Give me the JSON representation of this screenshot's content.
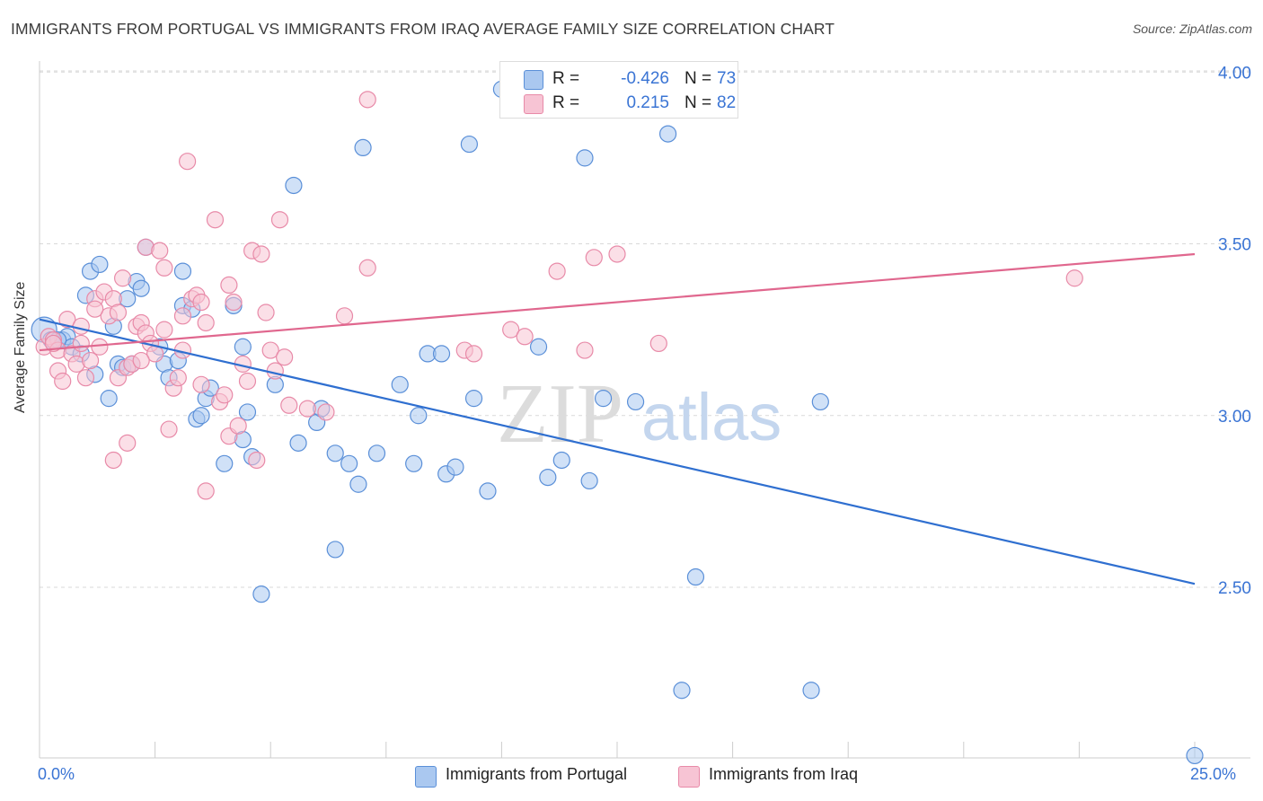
{
  "header": {
    "title": "IMMIGRANTS FROM PORTUGAL VS IMMIGRANTS FROM IRAQ AVERAGE FAMILY SIZE CORRELATION CHART",
    "source": "Source: ZipAtlas.com"
  },
  "watermark": {
    "zip": "ZIP",
    "atlas": "atlas"
  },
  "legend": {
    "r_label": "R =",
    "n_label": "N =",
    "portugal": {
      "r": "-0.426",
      "n": "73"
    },
    "iraq": {
      "r": "0.215",
      "n": "82"
    }
  },
  "colors": {
    "portugal_fill": "#aac8f0",
    "portugal_stroke": "#5a8fd8",
    "portugal_line": "#2f6fd0",
    "iraq_fill": "#f7c4d4",
    "iraq_stroke": "#e88aa8",
    "iraq_line": "#e0678e",
    "axis_text": "#3a74d4",
    "grid": "#d9d9d9"
  },
  "chart_data": {
    "type": "scatter",
    "title": "IMMIGRANTS FROM PORTUGAL VS IMMIGRANTS FROM IRAQ AVERAGE FAMILY SIZE CORRELATION CHART",
    "xlabel": "",
    "ylabel": "Average Family Size",
    "xlim": [
      0,
      25
    ],
    "ylim": [
      2.0,
      4.05
    ],
    "x_tick_labels": [
      "0.0%",
      "25.0%"
    ],
    "y_ticks": [
      2.5,
      3.0,
      3.5,
      4.0
    ],
    "y_tick_labels": [
      "2.50",
      "3.00",
      "3.50",
      "4.00"
    ],
    "grid": true,
    "series": [
      {
        "name": "Immigrants from Portugal",
        "trend": [
          [
            0,
            3.28
          ],
          [
            25,
            2.51
          ]
        ],
        "points": [
          [
            0.1,
            3.25
          ],
          [
            0.25,
            3.22
          ],
          [
            0.5,
            3.22
          ],
          [
            0.6,
            3.23
          ],
          [
            0.7,
            3.2
          ],
          [
            1.0,
            3.35
          ],
          [
            1.1,
            3.42
          ],
          [
            1.3,
            3.44
          ],
          [
            1.6,
            3.26
          ],
          [
            1.2,
            3.12
          ],
          [
            1.5,
            3.05
          ],
          [
            1.7,
            3.15
          ],
          [
            1.8,
            3.14
          ],
          [
            1.9,
            3.34
          ],
          [
            2.1,
            3.39
          ],
          [
            2.2,
            3.37
          ],
          [
            2.3,
            3.49
          ],
          [
            2.6,
            3.2
          ],
          [
            2.7,
            3.15
          ],
          [
            2.8,
            3.11
          ],
          [
            3.1,
            3.32
          ],
          [
            3.3,
            3.31
          ],
          [
            3.1,
            3.42
          ],
          [
            3.4,
            2.99
          ],
          [
            3.5,
            3.0
          ],
          [
            3.6,
            3.05
          ],
          [
            3.7,
            3.08
          ],
          [
            4.0,
            2.86
          ],
          [
            4.2,
            3.32
          ],
          [
            4.4,
            2.93
          ],
          [
            4.4,
            3.2
          ],
          [
            4.5,
            3.01
          ],
          [
            4.6,
            2.88
          ],
          [
            5.1,
            3.09
          ],
          [
            4.8,
            2.48
          ],
          [
            5.5,
            3.67
          ],
          [
            5.6,
            2.92
          ],
          [
            6.0,
            2.98
          ],
          [
            6.1,
            3.02
          ],
          [
            6.4,
            2.89
          ],
          [
            6.4,
            2.61
          ],
          [
            6.7,
            2.86
          ],
          [
            6.9,
            2.8
          ],
          [
            7.0,
            3.78
          ],
          [
            7.3,
            2.89
          ],
          [
            7.8,
            3.09
          ],
          [
            8.1,
            2.86
          ],
          [
            8.2,
            3.0
          ],
          [
            8.4,
            3.18
          ],
          [
            8.7,
            3.18
          ],
          [
            8.8,
            2.83
          ],
          [
            9.0,
            2.85
          ],
          [
            9.3,
            3.79
          ],
          [
            9.4,
            3.05
          ],
          [
            9.7,
            2.78
          ],
          [
            10.0,
            3.95
          ],
          [
            10.8,
            3.2
          ],
          [
            11.0,
            2.82
          ],
          [
            11.3,
            2.87
          ],
          [
            11.8,
            3.75
          ],
          [
            11.9,
            2.81
          ],
          [
            12.2,
            3.05
          ],
          [
            12.9,
            3.04
          ],
          [
            13.6,
            3.82
          ],
          [
            13.9,
            2.2
          ],
          [
            14.2,
            2.53
          ],
          [
            16.7,
            2.2
          ],
          [
            16.9,
            3.04
          ],
          [
            25.0,
            2.01
          ],
          [
            0.4,
            3.22
          ],
          [
            0.9,
            3.18
          ],
          [
            2.0,
            3.15
          ],
          [
            3.0,
            3.16
          ]
        ]
      },
      {
        "name": "Immigrants from Iraq",
        "trend": [
          [
            0,
            3.19
          ],
          [
            25,
            3.47
          ]
        ],
        "points": [
          [
            0.1,
            3.2
          ],
          [
            0.2,
            3.23
          ],
          [
            0.3,
            3.22
          ],
          [
            0.4,
            3.19
          ],
          [
            0.4,
            3.13
          ],
          [
            0.5,
            3.1
          ],
          [
            0.6,
            3.28
          ],
          [
            0.7,
            3.18
          ],
          [
            0.8,
            3.15
          ],
          [
            0.9,
            3.26
          ],
          [
            0.9,
            3.21
          ],
          [
            1.0,
            3.11
          ],
          [
            1.1,
            3.16
          ],
          [
            1.2,
            3.34
          ],
          [
            1.3,
            3.2
          ],
          [
            1.4,
            3.36
          ],
          [
            1.5,
            3.29
          ],
          [
            1.6,
            3.34
          ],
          [
            1.7,
            3.3
          ],
          [
            1.7,
            3.11
          ],
          [
            1.8,
            3.4
          ],
          [
            1.9,
            3.14
          ],
          [
            1.9,
            2.92
          ],
          [
            1.6,
            2.87
          ],
          [
            2.0,
            3.15
          ],
          [
            2.1,
            3.26
          ],
          [
            2.2,
            3.27
          ],
          [
            2.3,
            3.49
          ],
          [
            2.3,
            3.24
          ],
          [
            2.4,
            3.21
          ],
          [
            2.5,
            3.18
          ],
          [
            2.6,
            3.48
          ],
          [
            2.7,
            3.25
          ],
          [
            2.7,
            3.43
          ],
          [
            2.8,
            2.96
          ],
          [
            2.9,
            3.08
          ],
          [
            3.0,
            3.11
          ],
          [
            3.1,
            3.29
          ],
          [
            3.1,
            3.19
          ],
          [
            3.2,
            3.74
          ],
          [
            3.3,
            3.34
          ],
          [
            3.4,
            3.35
          ],
          [
            3.5,
            3.33
          ],
          [
            3.5,
            3.09
          ],
          [
            3.6,
            3.27
          ],
          [
            3.6,
            2.78
          ],
          [
            3.8,
            3.57
          ],
          [
            3.9,
            3.04
          ],
          [
            4.0,
            3.06
          ],
          [
            4.1,
            3.38
          ],
          [
            4.1,
            2.94
          ],
          [
            4.2,
            3.33
          ],
          [
            4.3,
            2.97
          ],
          [
            4.4,
            3.15
          ],
          [
            4.5,
            3.1
          ],
          [
            4.6,
            3.48
          ],
          [
            4.7,
            2.87
          ],
          [
            4.8,
            3.47
          ],
          [
            4.9,
            3.3
          ],
          [
            5.0,
            3.19
          ],
          [
            5.1,
            3.13
          ],
          [
            5.2,
            3.57
          ],
          [
            5.3,
            3.17
          ],
          [
            5.4,
            3.03
          ],
          [
            5.8,
            3.02
          ],
          [
            6.2,
            3.01
          ],
          [
            6.6,
            3.29
          ],
          [
            7.1,
            3.43
          ],
          [
            7.1,
            3.92
          ],
          [
            9.2,
            3.19
          ],
          [
            9.4,
            3.18
          ],
          [
            10.2,
            3.25
          ],
          [
            10.5,
            3.23
          ],
          [
            11.2,
            3.42
          ],
          [
            11.8,
            3.19
          ],
          [
            12.0,
            3.46
          ],
          [
            12.5,
            3.47
          ],
          [
            13.4,
            3.21
          ],
          [
            22.4,
            3.4
          ],
          [
            0.3,
            3.21
          ],
          [
            1.2,
            3.31
          ],
          [
            2.2,
            3.16
          ]
        ]
      }
    ]
  },
  "bottom_legend": {
    "portugal_label": "Immigrants from Portugal",
    "iraq_label": "Immigrants from Iraq"
  },
  "axis": {
    "x_min_label": "0.0%",
    "x_max_label": "25.0%",
    "y_label": "Average Family Size"
  }
}
